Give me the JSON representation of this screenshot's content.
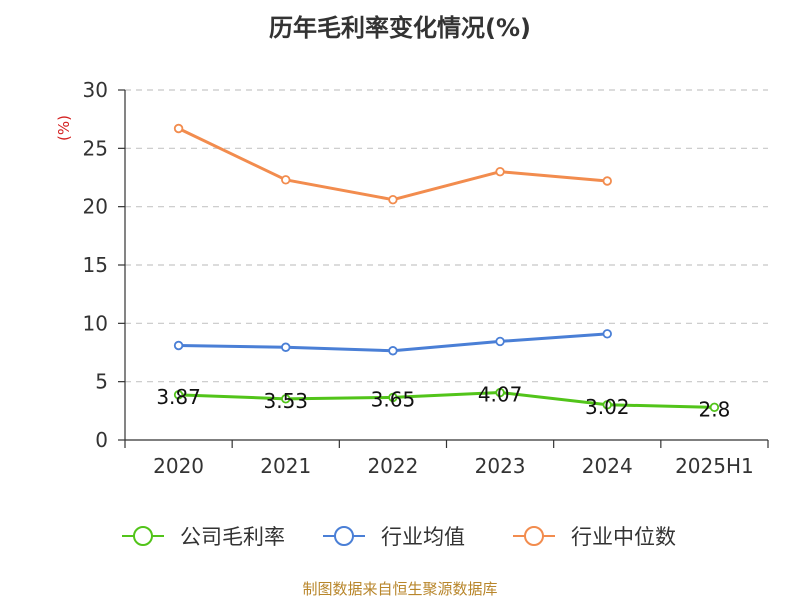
{
  "title": "历年毛利率变化情况(%)",
  "source": "制图数据来自恒生聚源数据库",
  "chart_data": {
    "type": "line",
    "title": "历年毛利率变化情况(%)",
    "ylabel": "(%)",
    "categories": [
      "2020",
      "2021",
      "2022",
      "2023",
      "2024",
      "2025H1"
    ],
    "ylim": [
      0,
      30
    ],
    "yticks": [
      0,
      5,
      10,
      15,
      20,
      25,
      30
    ],
    "grid": true,
    "legend_position": "bottom",
    "series": [
      {
        "name": "公司毛利率",
        "color": "#52c41a",
        "values": [
          3.87,
          3.53,
          3.65,
          4.07,
          3.02,
          2.8
        ],
        "labels": [
          "3.87",
          "3.53",
          "3.65",
          "4.07",
          "3.02",
          "2.8"
        ]
      },
      {
        "name": "行业均值",
        "color": "#4a7fd6",
        "values": [
          8.1,
          7.95,
          7.65,
          8.45,
          9.1,
          null
        ]
      },
      {
        "name": "行业中位数",
        "color": "#f28c4e",
        "values": [
          26.7,
          22.3,
          20.6,
          23.0,
          22.2,
          null
        ]
      }
    ]
  }
}
